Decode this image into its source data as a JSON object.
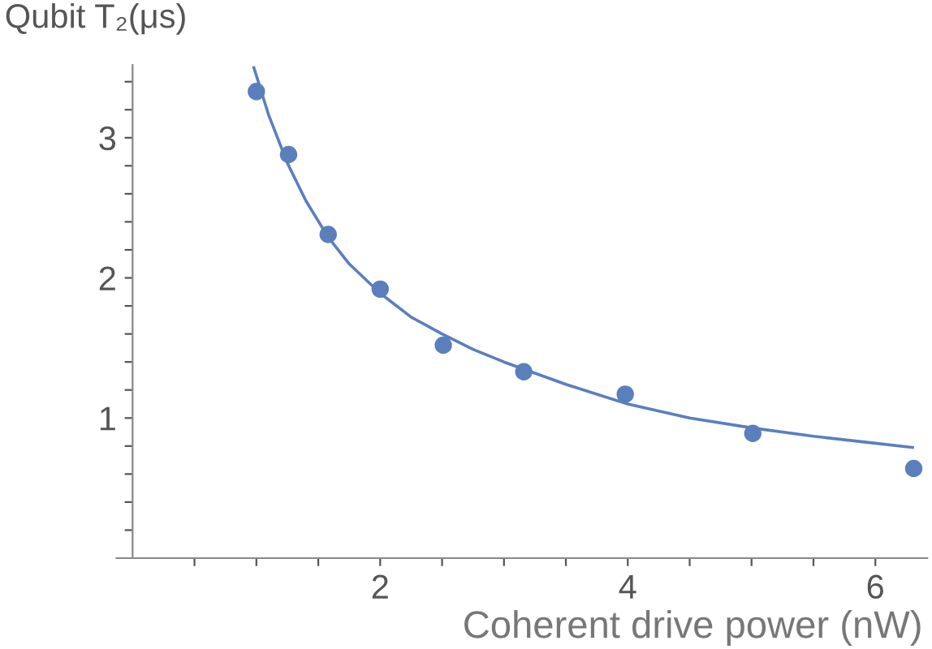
{
  "chart_data": {
    "type": "scatter",
    "xlabel": "Coherent drive power (nW)",
    "ylabel": "Qubit T₂(μs)",
    "marker": "circle",
    "grid": false,
    "legend": false,
    "xlim": [
      -0.13,
      6.42
    ],
    "ylim": [
      0,
      3.52
    ],
    "xticks": [
      {
        "value": 0.5,
        "label": null
      },
      {
        "value": 1,
        "label": null
      },
      {
        "value": 1.5,
        "label": null
      },
      2,
      {
        "value": 2.5,
        "label": null
      },
      {
        "value": 3,
        "label": null
      },
      {
        "value": 3.5,
        "label": null
      },
      4,
      {
        "value": 4.5,
        "label": null
      },
      {
        "value": 5,
        "label": null
      },
      {
        "value": 5.5,
        "label": null
      },
      6
    ],
    "yticks": [
      {
        "value": 0.2,
        "label": null
      },
      {
        "value": 0.4,
        "label": null
      },
      {
        "value": 0.6,
        "label": null
      },
      {
        "value": 0.8,
        "label": null
      },
      1,
      {
        "value": 1.2,
        "label": null
      },
      {
        "value": 1.4,
        "label": null
      },
      {
        "value": 1.6,
        "label": null
      },
      {
        "value": 1.8,
        "label": null
      },
      2,
      {
        "value": 2.2,
        "label": null
      },
      {
        "value": 2.4,
        "label": null
      },
      {
        "value": 2.6,
        "label": null
      },
      {
        "value": 2.8,
        "label": null
      },
      3,
      {
        "value": 3.2,
        "label": null
      },
      {
        "value": 3.4,
        "label": null
      }
    ],
    "series": [
      {
        "color": "#5b7fbc",
        "x": [
          1,
          1.26,
          1.58,
          2,
          2.51,
          3.16,
          3.98,
          5.01,
          6.31
        ],
        "values": [
          3.33,
          2.88,
          2.31,
          1.92,
          1.52,
          1.33,
          1.17,
          0.89,
          0.64
        ]
      },
      {
        "type": "line",
        "color": "#5b7fbc",
        "marker": "none",
        "line_style": "solid",
        "x": [
          0.98,
          1.1,
          1.25,
          1.4,
          1.58,
          1.75,
          2,
          2.25,
          2.5,
          2.75,
          3,
          3.5,
          4,
          4.5,
          5,
          5.5,
          6,
          6.3
        ],
        "values": [
          3.5,
          3.16,
          2.82,
          2.55,
          2.29,
          2.1,
          1.89,
          1.72,
          1.6,
          1.49,
          1.4,
          1.24,
          1.1,
          1.0,
          0.93,
          0.87,
          0.82,
          0.79
        ]
      }
    ]
  }
}
